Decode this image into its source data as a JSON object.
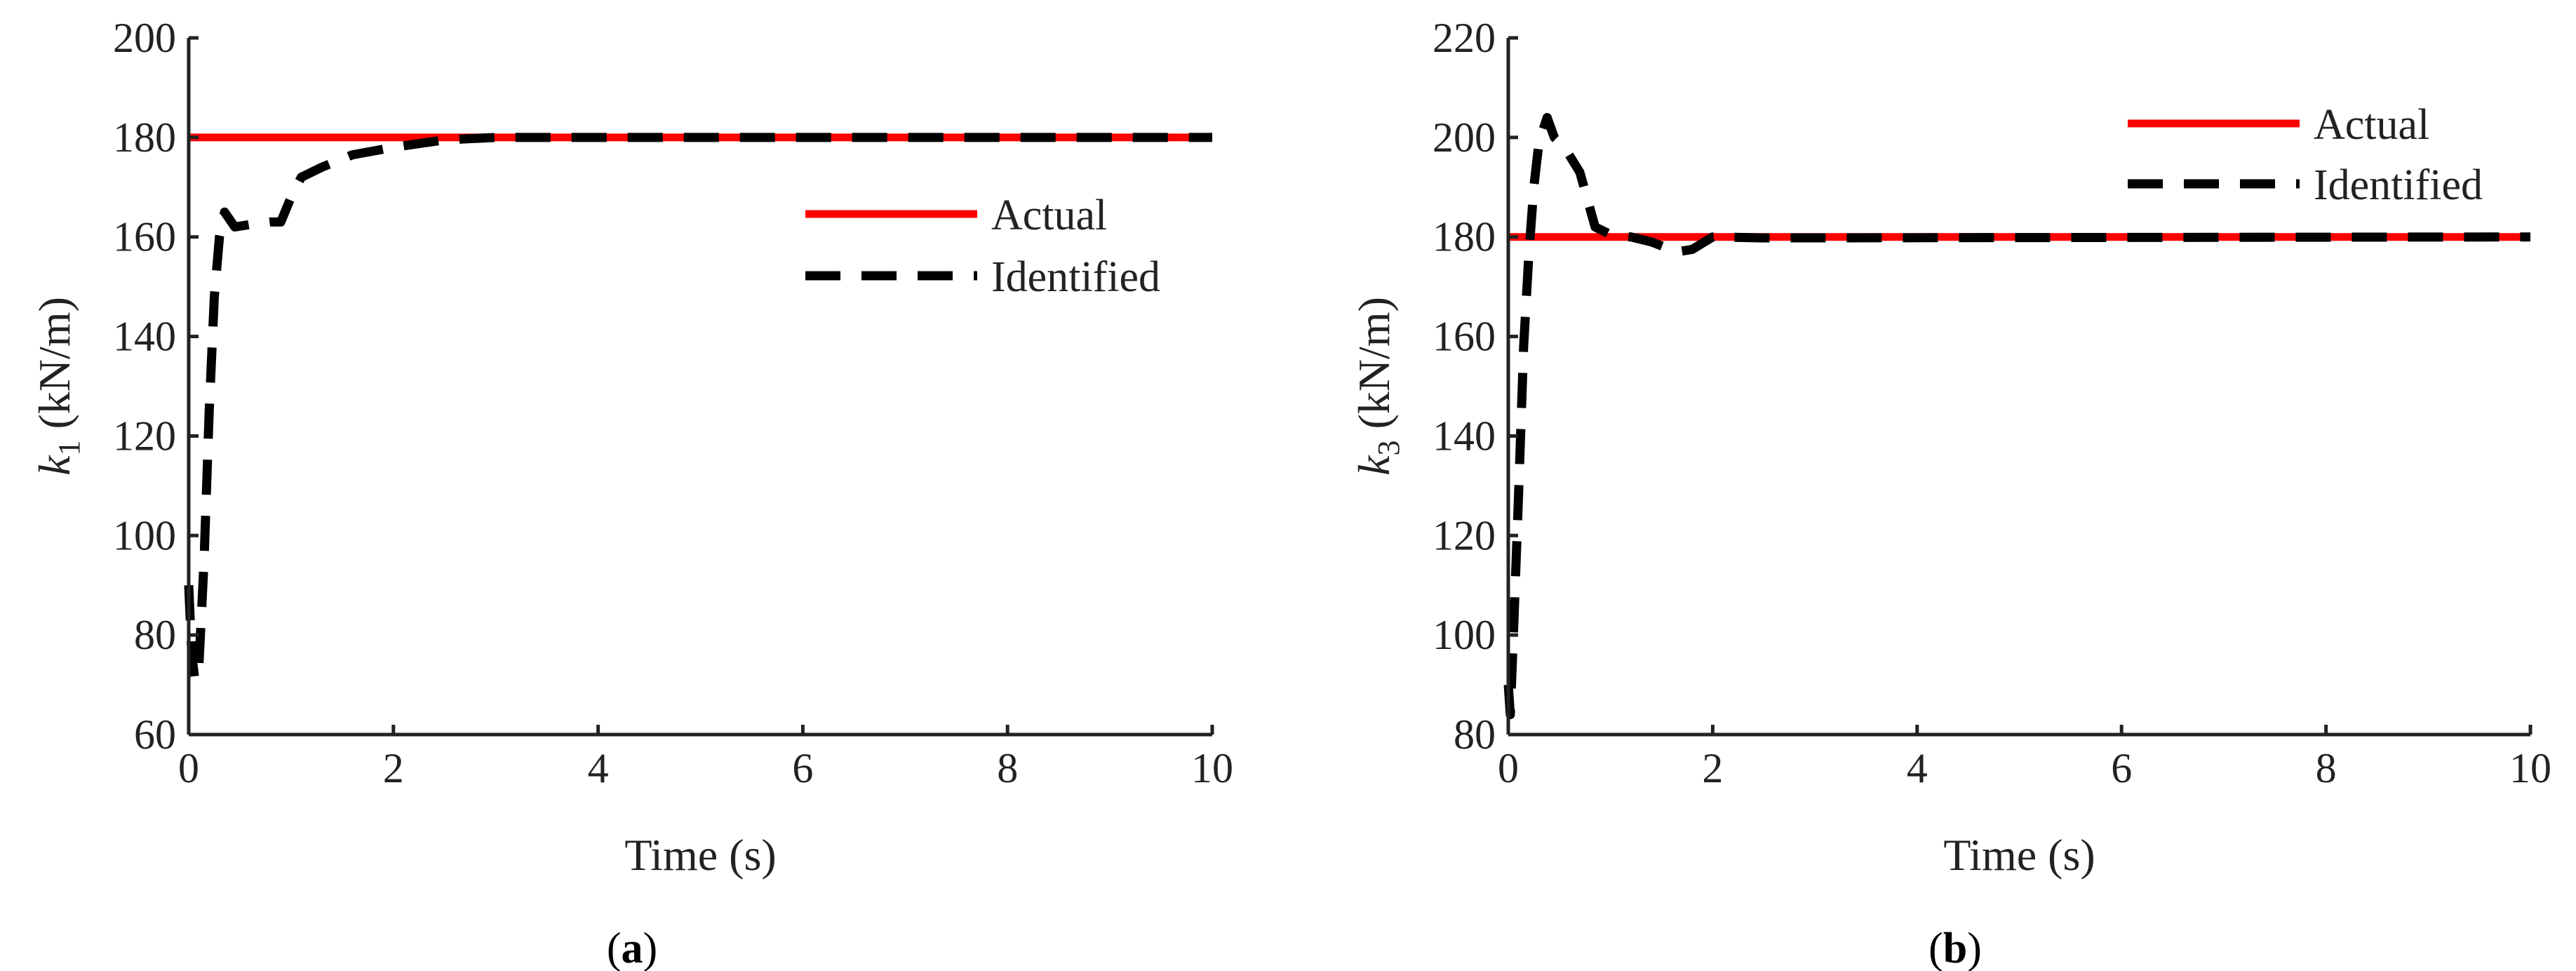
{
  "chart_data": [
    {
      "type": "line",
      "panel_label": "a",
      "xlabel": "Time (s)",
      "ylabel_var": "k",
      "ylabel_sub": "1",
      "ylabel_unit": " (kN/m)",
      "xlim": [
        0,
        10
      ],
      "ylim": [
        60,
        200
      ],
      "xticks": [
        0,
        2,
        4,
        6,
        8,
        10
      ],
      "yticks": [
        60,
        80,
        100,
        120,
        140,
        160,
        180,
        200
      ],
      "grid": false,
      "legend_position": "upper-right-inside",
      "series": [
        {
          "name": "Actual",
          "color": "#ff0000",
          "style": "solid",
          "x": [
            0,
            10
          ],
          "y": [
            180,
            180
          ]
        },
        {
          "name": "Identified",
          "color": "#000000",
          "style": "dashed",
          "x": [
            0,
            0.03,
            0.06,
            0.1,
            0.15,
            0.2,
            0.25,
            0.3,
            0.35,
            0.45,
            0.6,
            0.8,
            0.9,
            1.0,
            1.1,
            1.3,
            1.6,
            2.0,
            2.5,
            3.0,
            10
          ],
          "y": [
            90,
            76,
            71,
            74,
            95,
            125,
            148,
            160,
            165,
            162,
            162.5,
            163,
            163,
            168,
            172,
            174,
            176.5,
            178,
            179.5,
            180,
            180
          ]
        }
      ]
    },
    {
      "type": "line",
      "panel_label": "b",
      "xlabel": "Time (s)",
      "ylabel_var": "k",
      "ylabel_sub": "3",
      "ylabel_unit": " (kN/m)",
      "xlim": [
        0,
        10
      ],
      "ylim": [
        80,
        220
      ],
      "xticks": [
        0,
        2,
        4,
        6,
        8,
        10
      ],
      "yticks": [
        80,
        100,
        120,
        140,
        160,
        180,
        200,
        220
      ],
      "grid": false,
      "legend_position": "top-right",
      "series": [
        {
          "name": "Actual",
          "color": "#ff0000",
          "style": "solid",
          "x": [
            0,
            10
          ],
          "y": [
            180,
            180
          ]
        },
        {
          "name": "Identified",
          "color": "#000000",
          "style": "dashed",
          "x": [
            0,
            0.02,
            0.05,
            0.1,
            0.15,
            0.2,
            0.25,
            0.3,
            0.38,
            0.45,
            0.55,
            0.7,
            0.85,
            1.0,
            1.2,
            1.4,
            1.65,
            1.8,
            2.0,
            2.5,
            10
          ],
          "y": [
            90,
            84,
            100,
            128,
            158,
            176,
            190,
            199,
            204,
            200,
            198,
            193,
            182,
            180.5,
            180,
            179,
            177,
            177.5,
            180,
            179.8,
            180
          ]
        }
      ]
    }
  ]
}
